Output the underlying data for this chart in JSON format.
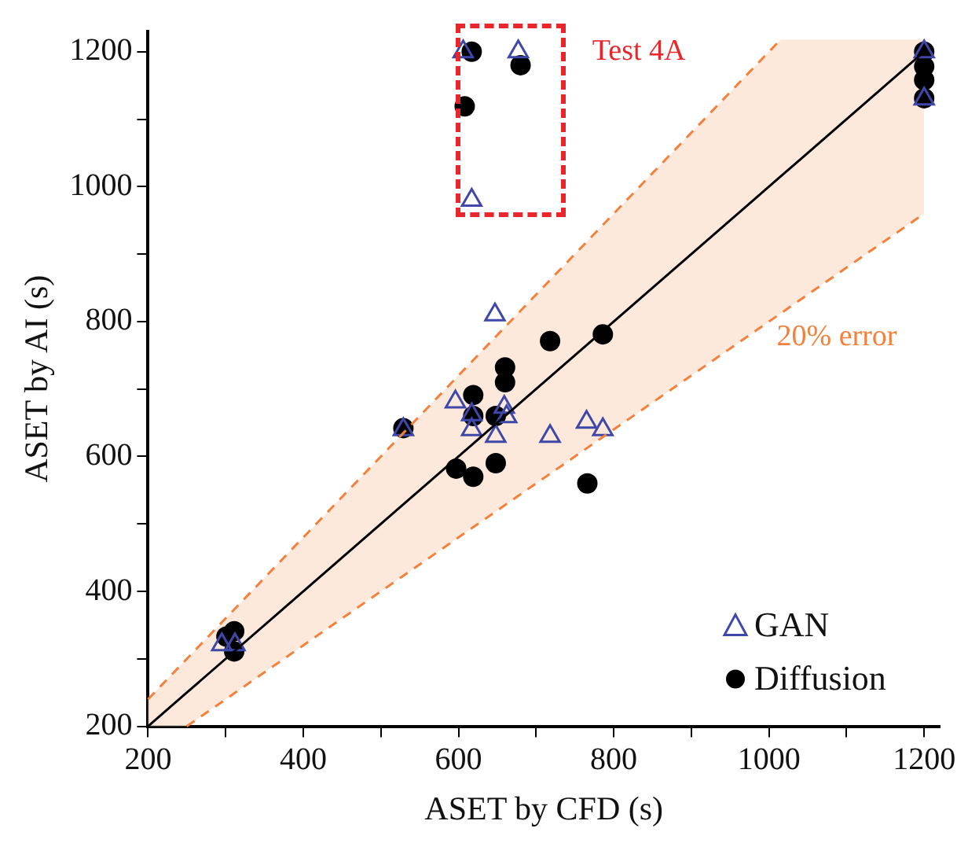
{
  "chart_data": {
    "type": "scatter",
    "xlabel": "ASET by CFD (s)",
    "ylabel": "ASET by AI (s)",
    "xlim": [
      200,
      1220
    ],
    "ylim": [
      200,
      1230
    ],
    "xticks": [
      200,
      {
        "value": 300,
        "label": null
      },
      400,
      {
        "value": 500,
        "label": null
      },
      600,
      {
        "value": 700,
        "label": null
      },
      800,
      {
        "value": 900,
        "label": null
      },
      1000,
      {
        "value": 1100,
        "label": null
      },
      1200
    ],
    "yticks": [
      200,
      {
        "value": 300,
        "label": null
      },
      400,
      {
        "value": 500,
        "label": null
      },
      600,
      {
        "value": 700,
        "label": null
      },
      800,
      {
        "value": 900,
        "label": null
      },
      1000,
      {
        "value": 1100,
        "label": null
      },
      1200
    ],
    "grid": false,
    "legend": "bottom right",
    "annotations": [
      "Test 4A",
      "20% error"
    ],
    "series": [
      {
        "type": "line",
        "color": "#000000",
        "marker": "none",
        "line_style": "solid",
        "x": [
          200,
          250,
          1015,
          1200
        ],
        "values": [
          200,
          250,
          1015,
          1200
        ],
        "lower": [
          200,
          200,
          812,
          960
        ],
        "upper": [
          240,
          300,
          1218,
          1218
        ]
      },
      {
        "type": "line",
        "color": "#f4803c",
        "marker": "none",
        "line_style": "dashed",
        "x": [
          200,
          1015
        ],
        "values": [
          240,
          1218
        ]
      },
      {
        "type": "line",
        "color": "#f4803c",
        "marker": "none",
        "line_style": "dashed",
        "x": [
          250,
          1200
        ],
        "values": [
          200,
          960
        ]
      },
      {
        "name": "GAN",
        "type": "scatter",
        "color": "#3f48a8",
        "marker": "triangle",
        "x": [
          606,
          677,
          617,
          647,
          596,
          617,
          617,
          659,
          662,
          648,
          718,
          765,
          786,
          529,
          295,
          312,
          1200,
          1200
        ],
        "values": [
          1200,
          1200,
          980,
          810,
          681,
          662,
          640,
          673,
          659,
          630,
          630,
          651,
          640,
          640,
          321,
          321,
          1200,
          1130
        ]
      },
      {
        "name": "Diffusion",
        "type": "scatter",
        "color": "#000000",
        "marker": "circle",
        "x": [
          617,
          680,
          608,
          718,
          786,
          1200,
          1200,
          1200,
          1200,
          660,
          660,
          619,
          619,
          648,
          529,
          597,
          619,
          648,
          766,
          301,
          311,
          311
        ],
        "values": [
          1200,
          1180,
          1119,
          771,
          781,
          1200,
          1178,
          1158,
          1131,
          732,
          710,
          691,
          660,
          660,
          642,
          582,
          570,
          590,
          560,
          333,
          341,
          311
        ]
      }
    ]
  }
}
